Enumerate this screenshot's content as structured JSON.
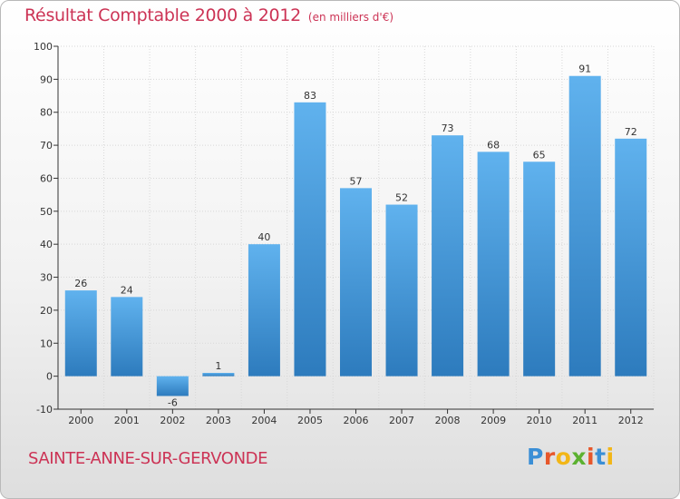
{
  "header": {
    "title": "Résultat Comptable 2000 à 2012",
    "subtitle": "(en milliers d'€)"
  },
  "footer": {
    "commune": "SAINTE-ANNE-SUR-GERVONDE",
    "logo": {
      "text": "Proxiti",
      "letter_colors": [
        "#3b8fd6",
        "#e7572b",
        "#f2b617",
        "#5cb130",
        "#e7572b",
        "#3b8fd6",
        "#f2b617"
      ]
    }
  },
  "colors": {
    "bar_top": "#60b2ee",
    "bar_bottom": "#2d7bbd",
    "accent": "#cc3355",
    "axis": "#333333",
    "grid": "#d8d8d8"
  },
  "chart_data": {
    "type": "bar",
    "title": "Résultat Comptable 2000 à 2012",
    "subtitle": "(en milliers d'€)",
    "xlabel": "",
    "ylabel": "",
    "categories": [
      "2000",
      "2001",
      "2002",
      "2003",
      "2004",
      "2005",
      "2006",
      "2007",
      "2008",
      "2009",
      "2010",
      "2011",
      "2012"
    ],
    "values": [
      26,
      24,
      -6,
      1,
      40,
      83,
      57,
      52,
      73,
      68,
      65,
      91,
      72
    ],
    "value_labels": [
      "26",
      "24",
      "-6",
      "1",
      "40",
      "83",
      "57",
      "52",
      "73",
      "68",
      "65",
      "91",
      "72"
    ],
    "ylim": [
      -10,
      100
    ],
    "yticks": [
      -10,
      0,
      10,
      20,
      30,
      40,
      50,
      60,
      70,
      80,
      90,
      100
    ],
    "grid": true
  }
}
